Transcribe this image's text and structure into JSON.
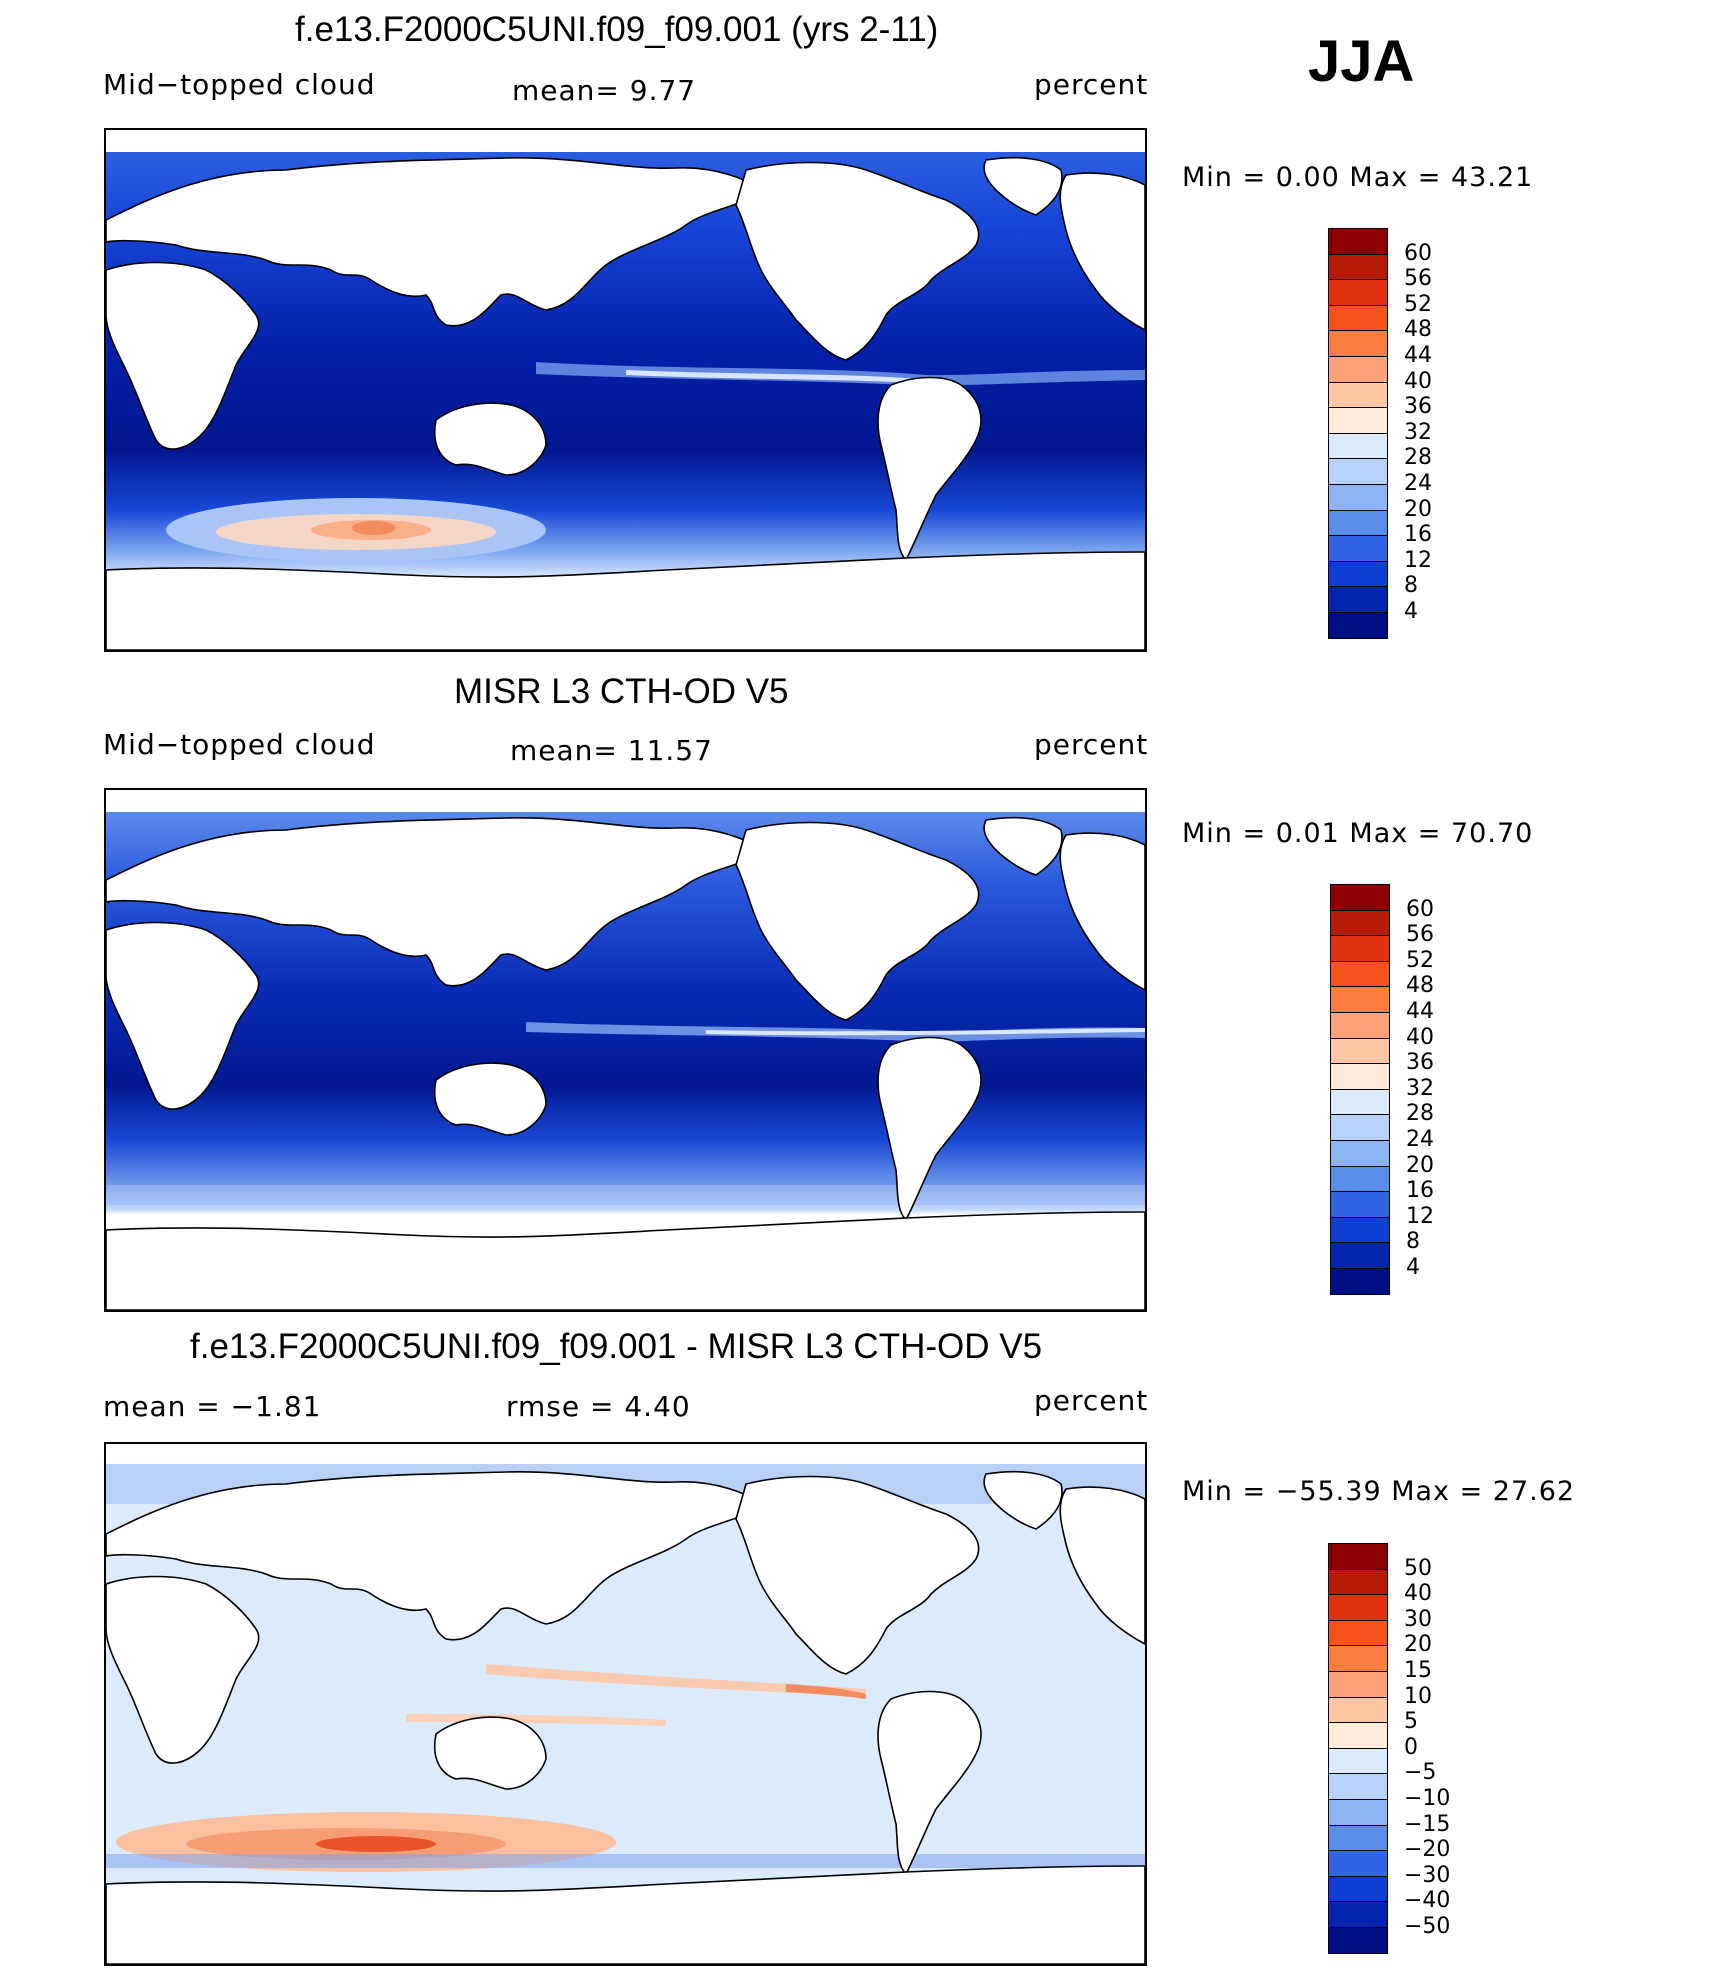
{
  "season": "JJA",
  "panels": [
    {
      "id": "model",
      "title": "f.e13.F2000C5UNI.f09_f09.001 (yrs 2-11)",
      "left_label": "Mid−topped  cloud",
      "center_label": "mean=    9.77",
      "right_label": "percent",
      "min_max": "Min  =      0.00  Max  =     43.21",
      "colorbar": {
        "ticks": [
          "60",
          "56",
          "52",
          "48",
          "44",
          "40",
          "36",
          "32",
          "28",
          "24",
          "20",
          "16",
          "12",
          "8",
          "4"
        ],
        "colors": [
          "#8b0000",
          "#b81a0a",
          "#e0320e",
          "#f5521c",
          "#fa7d3f",
          "#fca276",
          "#fdc7a6",
          "#feebd9",
          "#dcebfb",
          "#b7d1f8",
          "#8fb4f3",
          "#5a8cec",
          "#2f64e4",
          "#0d3fd4",
          "#0424b0",
          "#001084"
        ]
      }
    },
    {
      "id": "obs",
      "title": "MISR L3 CTH-OD V5",
      "left_label": "Mid−topped  cloud",
      "center_label": "mean=   11.57",
      "right_label": "percent",
      "min_max": "Min  =      0.01  Max  =     70.70",
      "colorbar": {
        "ticks": [
          "60",
          "56",
          "52",
          "48",
          "44",
          "40",
          "36",
          "32",
          "28",
          "24",
          "20",
          "16",
          "12",
          "8",
          "4"
        ],
        "colors": [
          "#8b0000",
          "#b81a0a",
          "#e0320e",
          "#f5521c",
          "#fa7d3f",
          "#fca276",
          "#fdc7a6",
          "#feebd9",
          "#dcebfb",
          "#b7d1f8",
          "#8fb4f3",
          "#5a8cec",
          "#2f64e4",
          "#0d3fd4",
          "#0424b0",
          "#001084"
        ]
      }
    },
    {
      "id": "diff",
      "title": "f.e13.F2000C5UNI.f09_f09.001 - MISR L3 CTH-OD V5",
      "left_label": "mean  =    −1.81",
      "center_label": "rmse  =     4.40",
      "right_label": "percent",
      "min_max": "Min  = −55.39  Max  =     27.62",
      "colorbar": {
        "ticks": [
          "50",
          "40",
          "30",
          "20",
          "15",
          "10",
          "5",
          "0",
          "−5",
          "−10",
          "−15",
          "−20",
          "−30",
          "−40",
          "−50"
        ],
        "colors": [
          "#8b0000",
          "#b81a0a",
          "#e0320e",
          "#f5521c",
          "#fa7d3f",
          "#fca276",
          "#fdc7a6",
          "#feebd9",
          "#dcebfb",
          "#b7d1f8",
          "#8fb4f3",
          "#5a8cec",
          "#2f64e4",
          "#0d3fd4",
          "#0424b0",
          "#001084"
        ]
      }
    }
  ],
  "colors": {
    "ocean_model": "#0a2fc9",
    "ocean_obs": "#0a30c6",
    "ocean_diff": "#dcebfb",
    "land": "#ffffff",
    "coast": "#000000"
  }
}
